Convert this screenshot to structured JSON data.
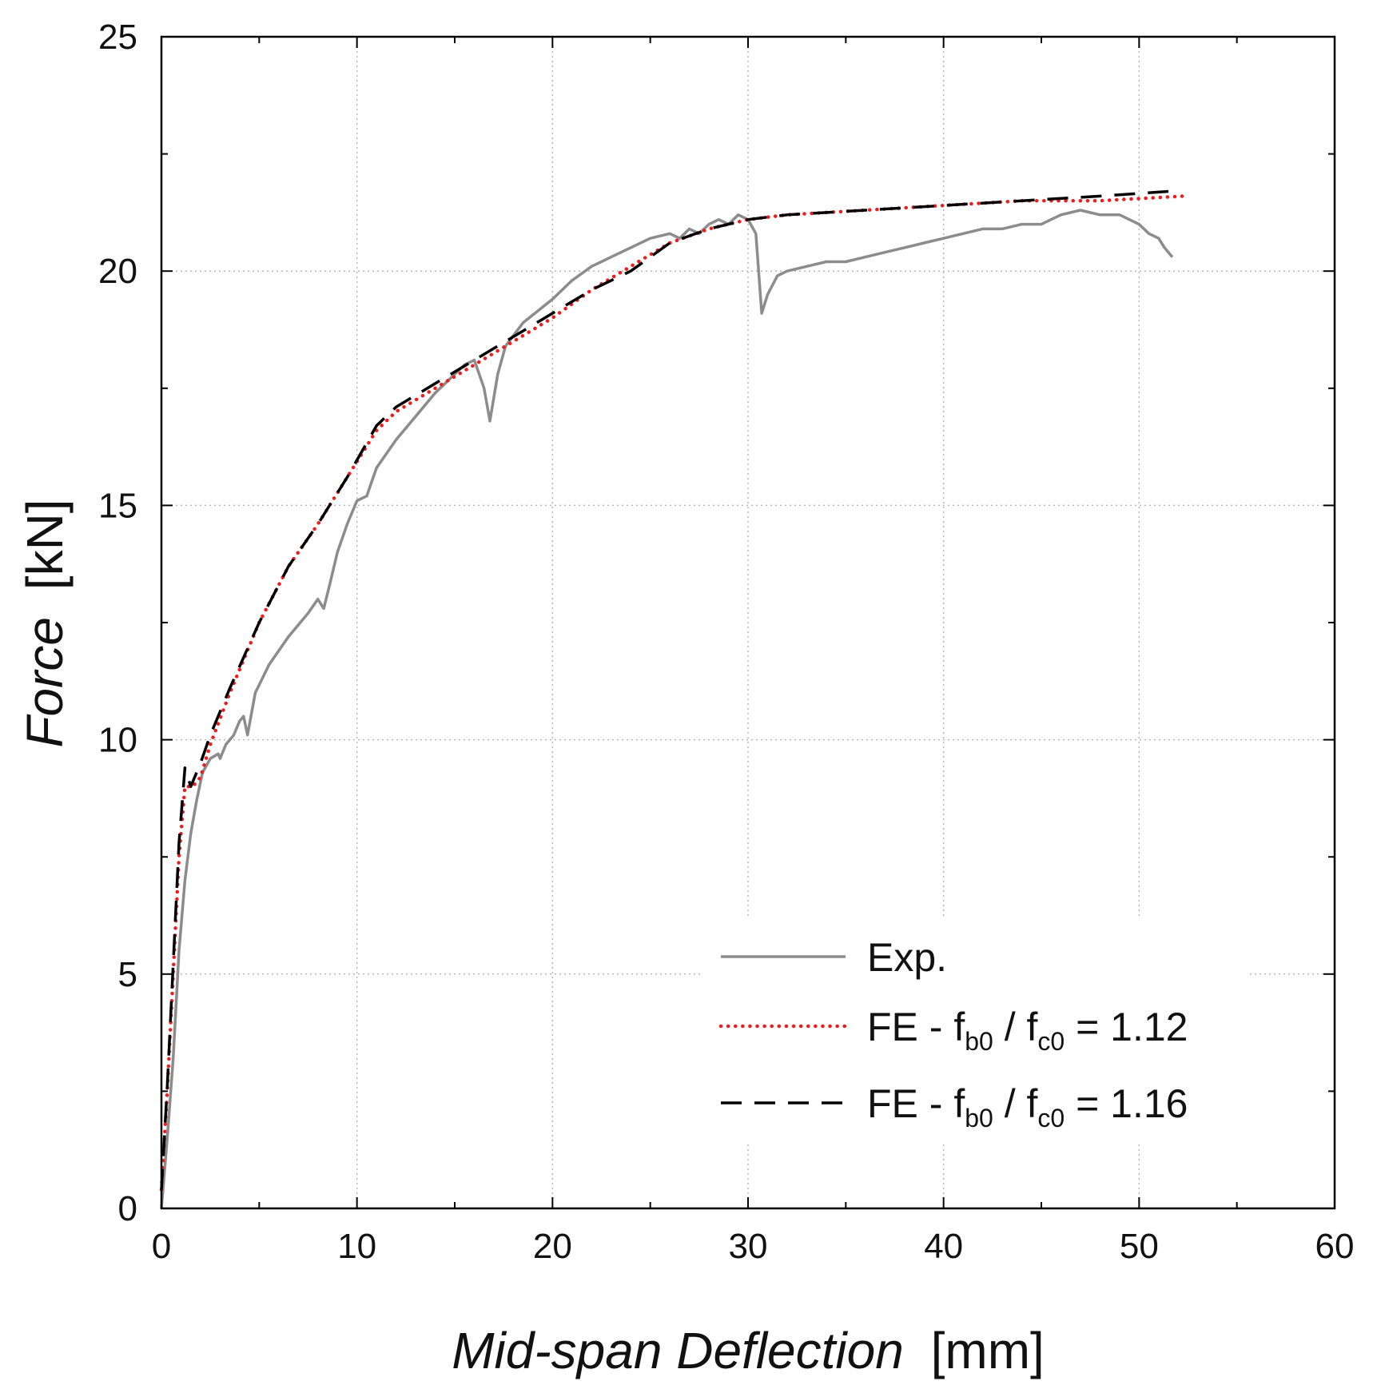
{
  "chart_data": {
    "type": "line",
    "xlabel_italic": "Mid-span Deflection",
    "xlabel_unit": "[mm]",
    "ylabel_italic": "Force",
    "ylabel_unit": "[kN]",
    "xlim": [
      0,
      60
    ],
    "ylim": [
      0,
      25
    ],
    "xticks": [
      0,
      10,
      20,
      30,
      40,
      50,
      60
    ],
    "yticks": [
      0,
      5,
      10,
      15,
      20,
      25
    ],
    "grid": true,
    "legend_position": "bottom-right",
    "series": [
      {
        "name": "Exp.",
        "color": "#8c8c8c",
        "style": "solid",
        "x": [
          0,
          0.3,
          0.6,
          0.9,
          1.2,
          1.5,
          1.8,
          2.1,
          2.5,
          2.9,
          3.0,
          3.3,
          3.7,
          4.0,
          4.2,
          4.4,
          4.8,
          5.5,
          6.5,
          7.5,
          8.0,
          8.3,
          8.6,
          9.0,
          9.5,
          10.0,
          10.5,
          11.0,
          12.0,
          13.0,
          14.0,
          15.0,
          15.5,
          16.0,
          16.5,
          16.8,
          17.2,
          17.6,
          18.5,
          20.0,
          21.0,
          22.0,
          23.0,
          24.0,
          25.0,
          26.0,
          26.5,
          27.0,
          27.5,
          28.0,
          28.5,
          29.0,
          29.5,
          30.0,
          30.4,
          30.7,
          31.0,
          31.5,
          32.0,
          33.0,
          34.0,
          35.0,
          36.0,
          37.0,
          38.0,
          39.0,
          40.0,
          41.0,
          42.0,
          43.0,
          44.0,
          45.0,
          45.5,
          46.0,
          47.0,
          48.0,
          48.5,
          49.0,
          49.5,
          50.0,
          50.5,
          51.0,
          51.3,
          51.7
        ],
        "y": [
          0,
          1.5,
          3.2,
          5.5,
          7.0,
          8.0,
          8.7,
          9.3,
          9.6,
          9.7,
          9.6,
          9.9,
          10.1,
          10.4,
          10.5,
          10.1,
          11.0,
          11.6,
          12.2,
          12.7,
          13.0,
          12.8,
          13.3,
          14.0,
          14.6,
          15.1,
          15.2,
          15.8,
          16.4,
          16.9,
          17.4,
          17.8,
          18.0,
          18.1,
          17.5,
          16.8,
          17.8,
          18.4,
          18.9,
          19.4,
          19.8,
          20.1,
          20.3,
          20.5,
          20.7,
          20.8,
          20.7,
          20.9,
          20.8,
          21.0,
          21.1,
          21.0,
          21.2,
          21.1,
          20.8,
          19.1,
          19.5,
          19.9,
          20.0,
          20.1,
          20.2,
          20.2,
          20.3,
          20.4,
          20.5,
          20.6,
          20.7,
          20.8,
          20.9,
          20.9,
          21.0,
          21.0,
          21.1,
          21.2,
          21.3,
          21.2,
          21.2,
          21.2,
          21.1,
          21.0,
          20.8,
          20.7,
          20.5,
          20.3
        ]
      },
      {
        "name": "FE - fb0 / fc0 = 1.12",
        "name_main": "FE - f",
        "name_sub1": "b0",
        "name_mid": " / f",
        "name_sub2": "c0",
        "name_end": " = 1.12",
        "color": "#ee1c1c",
        "style": "dotted",
        "x": [
          0,
          0.3,
          0.6,
          0.9,
          1.2,
          1.6,
          2.0,
          2.5,
          3.5,
          5.0,
          6.5,
          8.0,
          9.5,
          11.0,
          12.0,
          14.0,
          16.0,
          18.0,
          20.0,
          22.0,
          24.0,
          26.0,
          28.0,
          30.0,
          32.0,
          36.0,
          40.0,
          44.0,
          48.0,
          52.3
        ],
        "y": [
          0.4,
          2.5,
          5.0,
          7.5,
          9.0,
          9.0,
          9.2,
          9.9,
          11.0,
          12.5,
          13.7,
          14.6,
          15.6,
          16.6,
          17.0,
          17.5,
          18.0,
          18.5,
          19.0,
          19.6,
          20.1,
          20.6,
          20.9,
          21.1,
          21.2,
          21.3,
          21.4,
          21.5,
          21.5,
          21.6
        ]
      },
      {
        "name": "FE - fb0 / fc0 = 1.16",
        "name_main": "FE - f",
        "name_sub1": "b0",
        "name_mid": " / f",
        "name_sub2": "c0",
        "name_end": " = 1.16",
        "color": "#000000",
        "style": "dashed",
        "x": [
          0,
          0.3,
          0.6,
          0.9,
          1.2,
          1.5,
          2.0,
          2.5,
          3.5,
          5.0,
          6.5,
          8.0,
          9.5,
          11.0,
          12.0,
          14.0,
          16.0,
          18.0,
          20.0,
          22.0,
          24.0,
          26.0,
          28.0,
          30.0,
          32.0,
          36.0,
          40.0,
          44.0,
          48.0,
          51.5
        ],
        "y": [
          0.4,
          2.6,
          5.2,
          7.8,
          9.4,
          9.0,
          9.5,
          10.1,
          11.1,
          12.5,
          13.7,
          14.6,
          15.6,
          16.7,
          17.1,
          17.6,
          18.1,
          18.6,
          19.1,
          19.6,
          20.0,
          20.6,
          20.9,
          21.1,
          21.2,
          21.3,
          21.4,
          21.5,
          21.6,
          21.7
        ]
      }
    ]
  }
}
